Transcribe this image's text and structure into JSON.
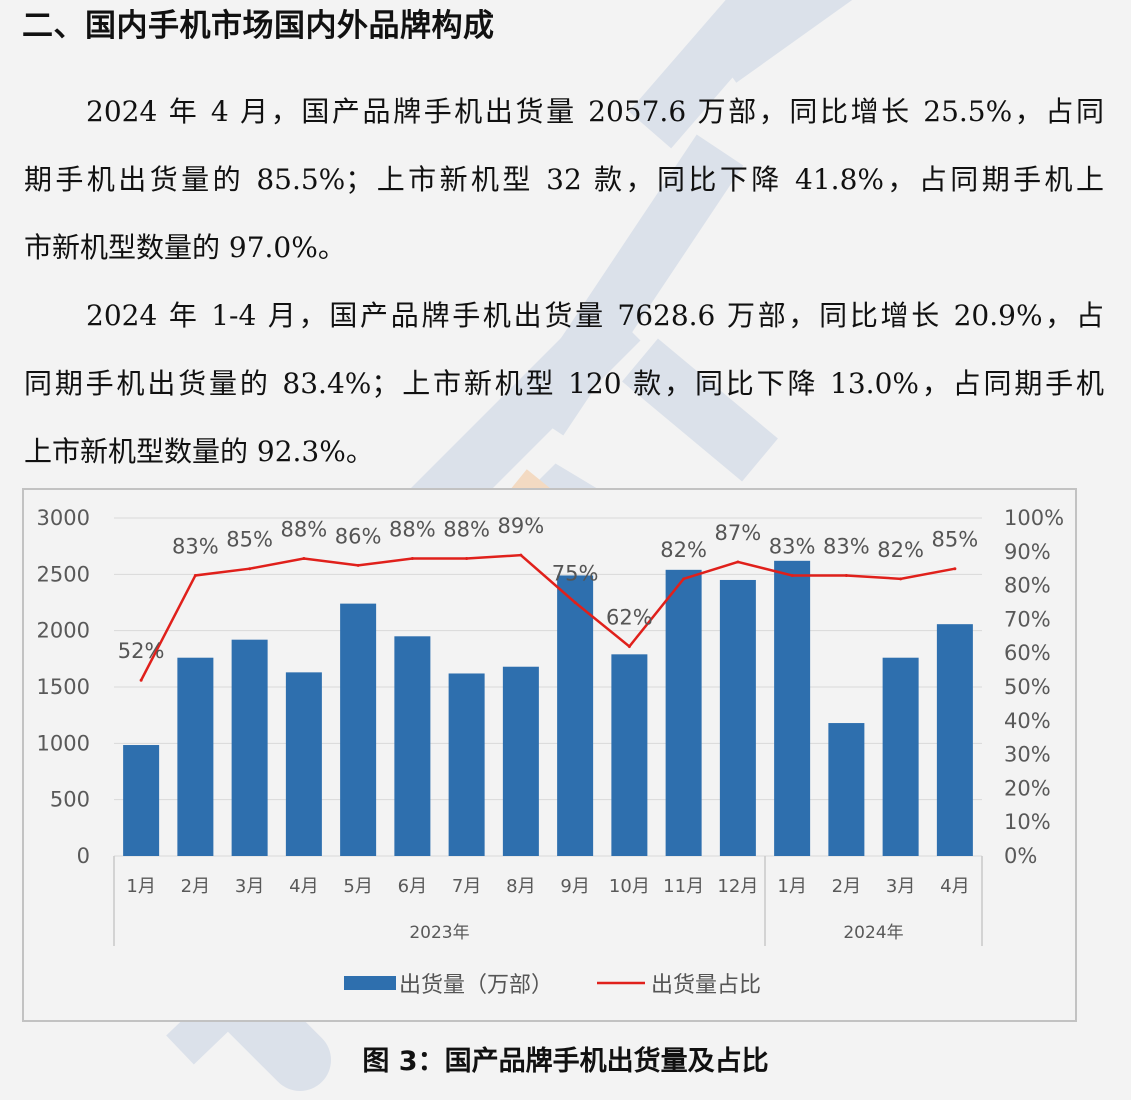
{
  "heading": "二、国内手机市场国内外品牌构成",
  "paragraphs": [
    {
      "lines": [
        "2024 年 4 月，国产品牌手机出货量 2057.6 万部，同比增长 25.5%，占同",
        "期手机出货量的 85.5%；上市新机型 32 款，同比下降 41.8%，占同期手机上",
        "市新机型数量的 97.0%。"
      ]
    },
    {
      "lines": [
        "2024 年 1-4 月，国产品牌手机出货量 7628.6 万部，同比增长 20.9%，占",
        "同期手机出货量的 83.4%；上市新机型 120 款，同比下降 13.0%，占同期手机",
        "上市新机型数量的 92.3%。"
      ]
    }
  ],
  "caption": "图 3：国产品牌手机出货量及占比",
  "chart_data": {
    "type": "bar",
    "categories": [
      "1月",
      "2月",
      "3月",
      "4月",
      "5月",
      "6月",
      "7月",
      "8月",
      "9月",
      "10月",
      "11月",
      "12月",
      "1月",
      "2月",
      "3月",
      "4月"
    ],
    "groups": [
      {
        "label": "2023年",
        "count": 12
      },
      {
        "label": "2024年",
        "count": 4
      }
    ],
    "series": [
      {
        "name": "出货量（万部）",
        "type": "bar",
        "axis": "left",
        "values": [
          985,
          1760,
          1920,
          1630,
          2240,
          1950,
          1620,
          1680,
          2490,
          1790,
          2540,
          2450,
          2620,
          1180,
          1760,
          2057.6
        ]
      },
      {
        "name": "出货量占比",
        "type": "line",
        "axis": "right",
        "values": [
          52,
          83,
          85,
          88,
          86,
          88,
          88,
          89,
          75,
          62,
          82,
          87,
          83,
          83,
          82,
          85
        ],
        "labels": [
          "52%",
          "83%",
          "85%",
          "88%",
          "86%",
          "88%",
          "88%",
          "89%",
          "75%",
          "62%",
          "82%",
          "87%",
          "83%",
          "83%",
          "82%",
          "85%"
        ]
      }
    ],
    "y_left": {
      "min": 0,
      "max": 3000,
      "step": 500,
      "ticks": [
        "0",
        "500",
        "1000",
        "1500",
        "2000",
        "2500",
        "3000"
      ]
    },
    "y_right": {
      "min": 0,
      "max": 100,
      "step": 10,
      "ticks": [
        "0%",
        "10%",
        "20%",
        "30%",
        "40%",
        "50%",
        "60%",
        "70%",
        "80%",
        "90%",
        "100%"
      ]
    },
    "grid": true,
    "legend_position": "bottom",
    "colors": {
      "bar": "#2e6fae",
      "line": "#e0201b",
      "grid": "#d9d9d9",
      "text": "#555555",
      "axis_text": "#595959"
    }
  },
  "watermark": {
    "color": "#c9d3e4",
    "accent": "#f3c79b"
  }
}
